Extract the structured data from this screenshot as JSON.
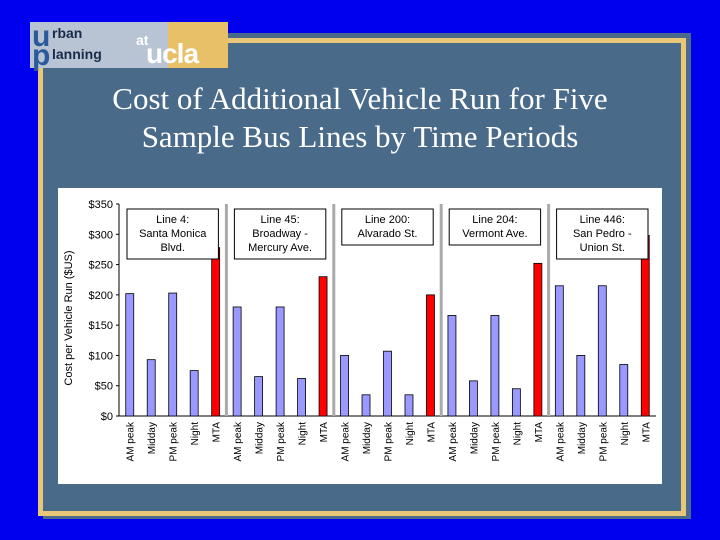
{
  "title_line1": "Cost of Additional Vehicle Run for Five",
  "title_line2": "Sample Bus Lines by Time Periods",
  "logo": {
    "u": "u",
    "rban": "rban",
    "p": "p",
    "lanning": "lanning",
    "at": "at",
    "ucla": "ucla"
  },
  "colors": {
    "background": "#0000ee",
    "frame": "#e8c878",
    "bar_regular": "#9999ff",
    "bar_mta": "#ff0000",
    "text": "#ffffff"
  },
  "chart_data": {
    "type": "bar",
    "ylabel": "Cost per Vehicle Run ($US)",
    "xlabel": "",
    "ylim": [
      0,
      350
    ],
    "yticks": [
      "$0",
      "$50",
      "$100",
      "$150",
      "$200",
      "$250",
      "$300",
      "$350"
    ],
    "grid": false,
    "groups": [
      {
        "label": "Line 4:\nSanta Monica\nBlvd.",
        "label_lines": [
          "Line 4:",
          "Santa Monica",
          "Blvd."
        ],
        "categories": [
          "AM peak",
          "Midday",
          "PM peak",
          "Night",
          "MTA"
        ],
        "values": [
          202,
          93,
          203,
          75,
          278
        ]
      },
      {
        "label": "Line 45:\nBroadway -\nMercury Ave.",
        "label_lines": [
          "Line 45:",
          "Broadway -",
          "Mercury Ave."
        ],
        "categories": [
          "AM peak",
          "Midday",
          "PM peak",
          "Night",
          "MTA"
        ],
        "values": [
          180,
          65,
          180,
          62,
          230
        ]
      },
      {
        "label": "Line 200:\nAlvarado St.",
        "label_lines": [
          "Line 200:",
          "Alvarado St."
        ],
        "categories": [
          "AM peak",
          "Midday",
          "PM peak",
          "Night",
          "MTA"
        ],
        "values": [
          100,
          35,
          107,
          35,
          200
        ]
      },
      {
        "label": "Line 204:\nVermont Ave.",
        "label_lines": [
          "Line 204:",
          "Vermont Ave."
        ],
        "categories": [
          "AM peak",
          "Midday",
          "PM peak",
          "Night",
          "MTA"
        ],
        "values": [
          166,
          58,
          166,
          45,
          252
        ]
      },
      {
        "label": "Line 446:\nSan Pedro -\nUnion St.",
        "label_lines": [
          "Line 446:",
          "San Pedro -",
          "Union St."
        ],
        "categories": [
          "AM peak",
          "Midday",
          "PM peak",
          "Night",
          "MTA"
        ],
        "values": [
          215,
          100,
          215,
          85,
          298
        ]
      }
    ]
  }
}
